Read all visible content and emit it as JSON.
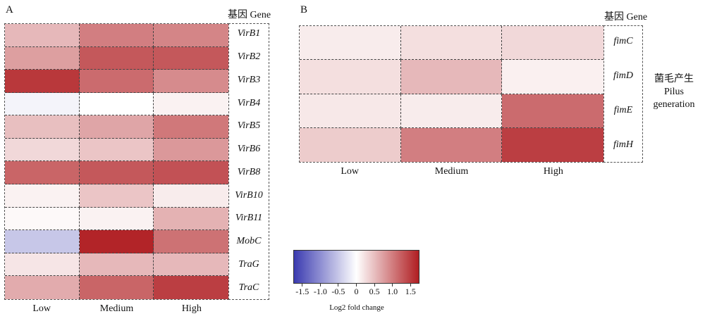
{
  "chart_data": [
    {
      "panel": "A",
      "type": "heatmap",
      "header": "基因 Gene",
      "columns": [
        "Low",
        "Medium",
        "High"
      ],
      "rows": [
        "VirB1",
        "VirB2",
        "VirB3",
        "VirB4",
        "VirB5",
        "VirB6",
        "VirB8",
        "VirB10",
        "VirB11",
        "MobC",
        "TraG",
        "TraC"
      ],
      "values": [
        [
          0.55,
          1.0,
          0.95
        ],
        [
          0.75,
          1.3,
          1.3
        ],
        [
          1.55,
          1.15,
          0.9
        ],
        [
          -0.1,
          0.0,
          0.1
        ],
        [
          0.5,
          0.7,
          1.05
        ],
        [
          0.3,
          0.45,
          0.8
        ],
        [
          1.2,
          1.3,
          1.35
        ],
        [
          0.1,
          0.45,
          0.15
        ],
        [
          0.05,
          0.1,
          0.6
        ],
        [
          -0.5,
          1.7,
          1.1
        ],
        [
          0.2,
          0.55,
          0.55
        ],
        [
          0.65,
          1.2,
          1.5
        ]
      ]
    },
    {
      "panel": "B",
      "type": "heatmap",
      "header": "基因 Gene",
      "group_label_zh": "菌毛产生",
      "group_label_en_1": "Pilus",
      "group_label_en_2": "generation",
      "columns": [
        "Low",
        "Medium",
        "High"
      ],
      "rows": [
        "fimC",
        "fimD",
        "fimE",
        "fimH"
      ],
      "values": [
        [
          0.15,
          0.25,
          0.3
        ],
        [
          0.25,
          0.55,
          0.12
        ],
        [
          0.18,
          0.15,
          1.15
        ],
        [
          0.4,
          1.0,
          1.5
        ]
      ]
    }
  ],
  "legend": {
    "title": "Log2 fold change",
    "range": [
      -1.75,
      1.75
    ],
    "ticks": [
      "-1.5",
      "-1.0",
      "-0.5",
      "0",
      "0.5",
      "1.0",
      "1.5"
    ],
    "tick_values": [
      -1.5,
      -1.0,
      -0.5,
      0,
      0.5,
      1.0,
      1.5
    ],
    "color_low": "#3b3bb0",
    "color_mid": "#ffffff",
    "color_high": "#b01e22"
  },
  "panel_letters": {
    "a": "A",
    "b": "B"
  }
}
